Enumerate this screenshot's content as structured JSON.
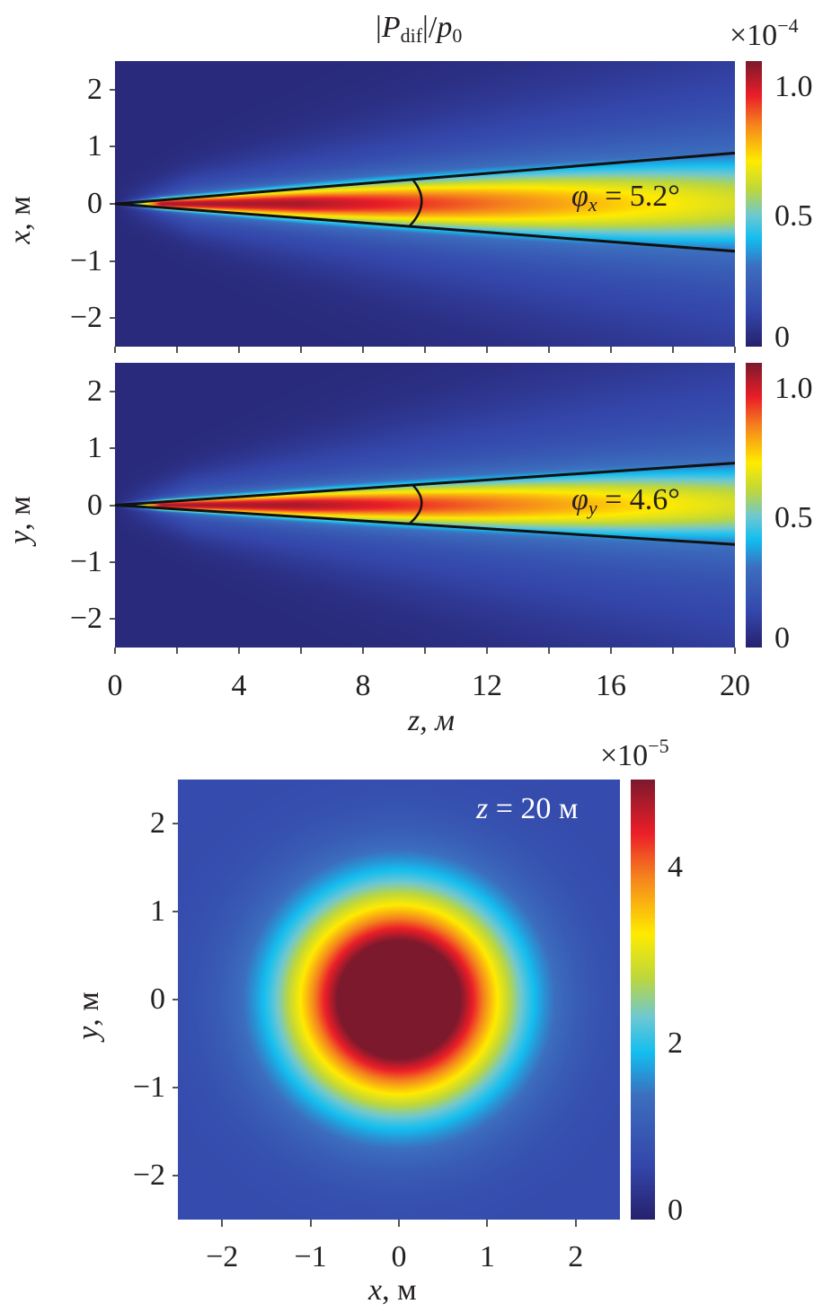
{
  "chart_data": [
    {
      "type": "heatmap",
      "name": "xz-section",
      "title": "|P_dif|/p_0",
      "title_parts": {
        "bar_open": "|",
        "P": "P",
        "sub": "dif",
        "bar_close": "|/",
        "p": "p",
        "p_sub": "0"
      },
      "xlabel": "z, м",
      "ylabel_var": "x",
      "ylabel_unit": ", м",
      "xlim": [
        0,
        20
      ],
      "ylim": [
        -2.5,
        2.5
      ],
      "xticks": [
        0,
        4,
        8,
        12,
        16,
        20
      ],
      "xtick_labels": [
        "0",
        "4",
        "8",
        "12",
        "16",
        "20"
      ],
      "yticks": [
        2,
        1,
        0,
        -1,
        -2
      ],
      "ytick_labels": [
        "2",
        "1",
        "0",
        "−1",
        "−2"
      ],
      "colorbar": {
        "range": [
          0,
          1.1
        ],
        "ticks": [
          1.0,
          0.5,
          0
        ],
        "tick_labels": [
          "1.0",
          "0.5",
          "0"
        ],
        "scale_label": "×10",
        "scale_exp": "−4",
        "colormap": "jet"
      },
      "lines": [
        {
          "from": [
            0,
            0
          ],
          "to": [
            20,
            0.89
          ]
        },
        {
          "from": [
            0,
            0
          ],
          "to": [
            20,
            -0.83
          ]
        }
      ],
      "arc_at_z": 9.6,
      "annotation": {
        "phi": "φ",
        "sub": "x",
        "text": " = 5.2°"
      },
      "peak_value": 1.05,
      "axis_value_at_z20": 0.65
    },
    {
      "type": "heatmap",
      "name": "yz-section",
      "xlabel": "z, м",
      "ylabel_var": "y",
      "ylabel_unit": ", м",
      "xlim": [
        0,
        20
      ],
      "ylim": [
        -2.5,
        2.5
      ],
      "yticks": [
        2,
        1,
        0,
        -1,
        -2
      ],
      "ytick_labels": [
        "2",
        "1",
        "0",
        "−1",
        "−2"
      ],
      "colorbar": {
        "range": [
          0,
          1.1
        ],
        "ticks": [
          1.0,
          0.5,
          0
        ],
        "tick_labels": [
          "1.0",
          "0.5",
          "0"
        ],
        "colormap": "jet"
      },
      "lines": [
        {
          "from": [
            0,
            0
          ],
          "to": [
            20,
            0.74
          ]
        },
        {
          "from": [
            0,
            0
          ],
          "to": [
            20,
            -0.69
          ]
        }
      ],
      "arc_at_z": 9.6,
      "annotation": {
        "phi": "φ",
        "sub": "y",
        "text": " = 4.6°"
      },
      "peak_value": 1.05,
      "axis_value_at_z20": 0.65
    },
    {
      "type": "heatmap",
      "name": "xy-section",
      "xlabel_var": "x",
      "xlabel_unit": ", м",
      "ylabel_var": "y",
      "ylabel_unit": ", м",
      "xlim": [
        -2.5,
        2.5
      ],
      "ylim": [
        -2.5,
        2.5
      ],
      "xticks": [
        -2,
        -1,
        0,
        1,
        2
      ],
      "xtick_labels": [
        "−2",
        "−1",
        "0",
        "1",
        "2"
      ],
      "yticks": [
        2,
        1,
        0,
        -1,
        -2
      ],
      "ytick_labels": [
        "2",
        "1",
        "0",
        "−1",
        "−2"
      ],
      "colorbar": {
        "range": [
          0,
          5
        ],
        "ticks": [
          4,
          2,
          0
        ],
        "tick_labels": [
          "4",
          "2",
          "0"
        ],
        "scale_label": "×10",
        "scale_exp": "−5",
        "colormap": "jet"
      },
      "annotation": {
        "var": "z",
        "text": " = 20 м"
      },
      "peak_value": 6.7,
      "background_value": 0.7
    }
  ]
}
